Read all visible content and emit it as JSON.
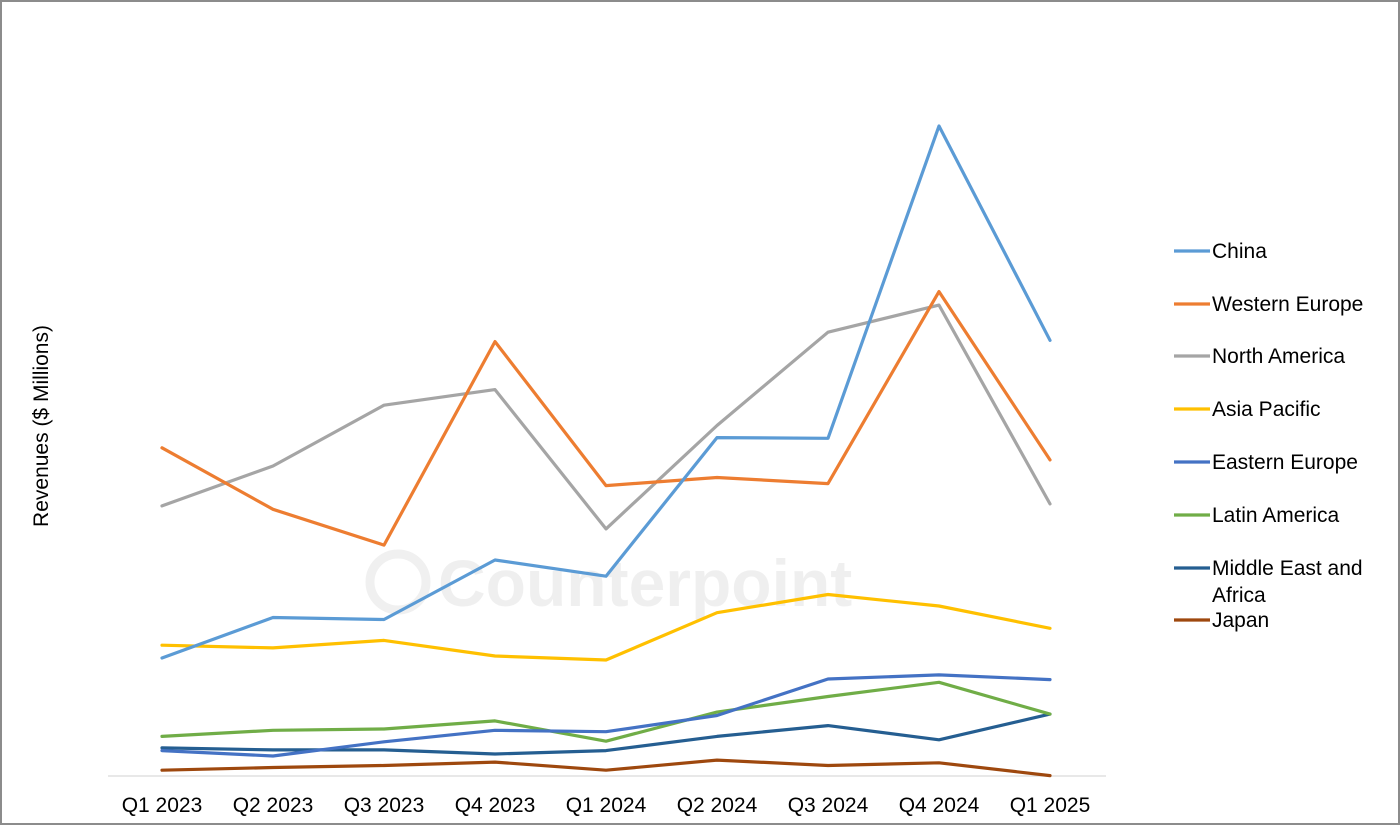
{
  "chart_data": {
    "type": "line",
    "title": "",
    "xlabel": "",
    "ylabel": "Revenues ($ Millions)",
    "categories": [
      "Q1 2023",
      "Q2 2023",
      "Q3 2023",
      "Q4 2023",
      "Q1 2024",
      "Q2 2024",
      "Q3 2024",
      "Q4 2024",
      "Q1 2025"
    ],
    "ylim": [
      0,
      100
    ],
    "y_axis_ticks_shown": false,
    "grid": false,
    "legend_position": "right",
    "watermark": "Counterpoint",
    "series": [
      {
        "name": "China",
        "color": "#5b9bd5",
        "values": [
          21.3,
          27.3,
          27.0,
          35.8,
          33.4,
          53.9,
          53.8,
          100.0,
          68.3
        ]
      },
      {
        "name": "Western Europe",
        "color": "#ed7d31",
        "values": [
          52.4,
          43.3,
          38.0,
          68.1,
          46.8,
          48.0,
          47.1,
          75.5,
          50.6
        ]
      },
      {
        "name": "North America",
        "color": "#a5a5a5",
        "values": [
          43.8,
          49.7,
          58.7,
          61.0,
          40.4,
          55.7,
          69.5,
          73.5,
          44.1
        ]
      },
      {
        "name": "Asia Pacific",
        "color": "#ffc000",
        "values": [
          23.2,
          22.8,
          23.9,
          21.6,
          21.0,
          28.0,
          30.7,
          29.0,
          25.7
        ]
      },
      {
        "name": "Eastern Europe",
        "color": "#4472c4",
        "values": [
          7.6,
          6.8,
          8.9,
          10.6,
          10.4,
          12.8,
          18.2,
          18.8,
          18.1
        ]
      },
      {
        "name": "Latin America",
        "color": "#70ad47",
        "values": [
          9.7,
          10.6,
          10.8,
          12.0,
          9.0,
          13.3,
          15.6,
          17.7,
          13.0
        ]
      },
      {
        "name": "Middle East and Africa",
        "color": "#255e91",
        "values": [
          8.0,
          7.7,
          7.7,
          7.1,
          7.6,
          9.7,
          11.3,
          9.2,
          13.0
        ]
      },
      {
        "name": "Japan",
        "color": "#9e480e",
        "values": [
          4.7,
          5.1,
          5.4,
          5.9,
          4.7,
          6.2,
          5.4,
          5.8,
          3.9
        ]
      }
    ]
  }
}
